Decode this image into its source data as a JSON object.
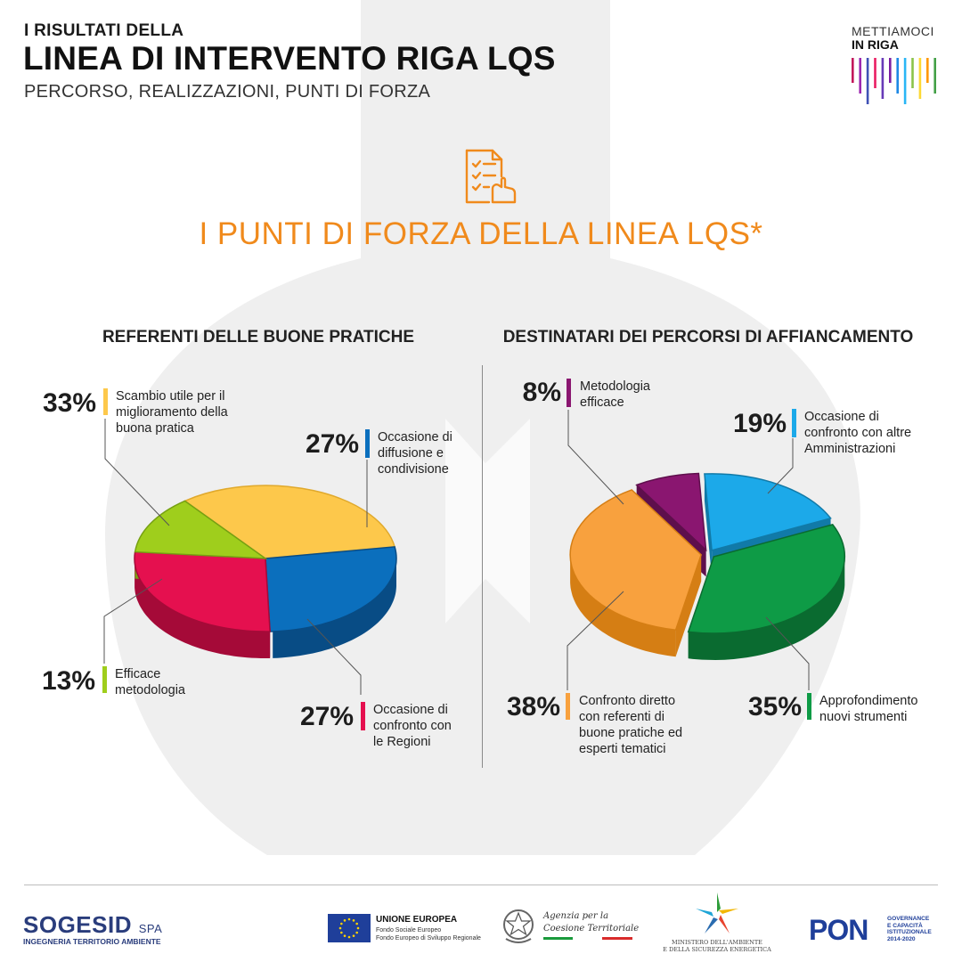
{
  "header": {
    "kicker": "I RISULTATI DELLA",
    "title": "LINEA DI INTERVENTO RIGA LQS",
    "subtitle": "PERCORSO, REALIZZAZIONI, PUNTI DI FORZA"
  },
  "brand": {
    "line1": "METTIAMOCI",
    "line2": "IN RIGA",
    "stripes": [
      "#c2185b",
      "#9c27b0",
      "#3f51b5",
      "#e91e63",
      "#673ab7",
      "#7b1fa2",
      "#1e88e5",
      "#29b6f6",
      "#8bc34a",
      "#fdd835",
      "#ff9800",
      "#43a047"
    ]
  },
  "main_title": "I PUNTI DI FORZA DELLA LINEA LQS*",
  "icon": "checklist-hand-icon",
  "accent": "#f08a1c",
  "chart_data": [
    {
      "type": "pie",
      "title": "REFERENTI DELLE BUONE PRATICHE",
      "slices": [
        {
          "pct_label": "33%",
          "value": 33,
          "label": "Scambio utile per il\nmiglioramento della\nbuona pratica",
          "color": "#fdc84b",
          "side": "#e0a92c"
        },
        {
          "pct_label": "27%",
          "value": 27,
          "label": "Occasione di\ndiffusione e\ncondivisione",
          "color": "#0b6fbd",
          "side": "#084c85"
        },
        {
          "pct_label": "27%",
          "value": 27,
          "label": "Occasione di\nconfronto con\nle Regioni",
          "color": "#e5104f",
          "side": "#a50a38"
        },
        {
          "pct_label": "13%",
          "value": 13,
          "label": "Efficace\nmetodologia",
          "color": "#9fce1c",
          "side": "#76a012"
        }
      ]
    },
    {
      "type": "pie",
      "title": "DESTINATARI DEI PERCORSI DI AFFIANCAMENTO",
      "slices": [
        {
          "pct_label": "8%",
          "value": 8,
          "label": "Metodologia\nefficace",
          "color": "#8a1670",
          "side": "#5e0f4c"
        },
        {
          "pct_label": "19%",
          "value": 19,
          "label": "Occasione di\nconfronto con altre\nAmministrazioni",
          "color": "#1ca9e9",
          "side": "#117aa8"
        },
        {
          "pct_label": "35%",
          "value": 35,
          "label": "Approfondimento\nnuovi strumenti",
          "color": "#0e9b46",
          "side": "#0a6b30"
        },
        {
          "pct_label": "38%",
          "value": 38,
          "label": "Confronto diretto\ncon referenti di\nbuone pratiche ed\nesperti tematici",
          "color": "#f8a13e",
          "side": "#d57e14"
        }
      ]
    }
  ],
  "footer": {
    "sogesid": "SOGESID",
    "sogesid_spa": "SPA",
    "sogesid_tag": "INGEGNERIA TERRITORIO AMBIENTE",
    "eu_title": "UNIONE EUROPEA",
    "eu_line1": "Fondo Sociale Europeo",
    "eu_line2": "Fondo Europeo di Sviluppo Regionale",
    "agency": "Agenzia per la\nCoesione Territoriale",
    "ministry": "MINISTERO DELL'AMBIENTE\nE DELLA SICUREZZA ENERGETICA",
    "pon": "PON",
    "pon_text": "GOVERNANCE\nE CAPACITÀ\nISTITUZIONALE\n2014-2020"
  }
}
